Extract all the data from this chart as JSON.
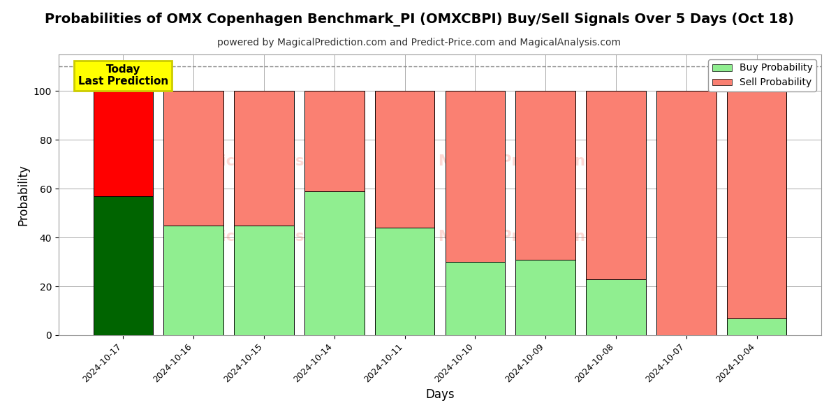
{
  "title": "Probabilities of OMX Copenhagen Benchmark_PI (OMXCBPI) Buy/Sell Signals Over 5 Days (Oct 18)",
  "subtitle": "powered by MagicalPrediction.com and Predict-Price.com and MagicalAnalysis.com",
  "xlabel": "Days",
  "ylabel": "Probability",
  "categories": [
    "2024-10-17",
    "2024-10-16",
    "2024-10-15",
    "2024-10-14",
    "2024-10-11",
    "2024-10-10",
    "2024-10-09",
    "2024-10-08",
    "2024-10-07",
    "2024-10-04"
  ],
  "buy_values": [
    57,
    45,
    45,
    59,
    44,
    30,
    31,
    23,
    0,
    7
  ],
  "sell_values": [
    43,
    55,
    55,
    41,
    56,
    70,
    69,
    77,
    100,
    93
  ],
  "buy_colors": [
    "#006400",
    "#90EE90",
    "#90EE90",
    "#90EE90",
    "#90EE90",
    "#90EE90",
    "#90EE90",
    "#90EE90",
    "#90EE90",
    "#90EE90"
  ],
  "sell_colors": [
    "#FF0000",
    "#FA8072",
    "#FA8072",
    "#FA8072",
    "#FA8072",
    "#FA8072",
    "#FA8072",
    "#FA8072",
    "#FA8072",
    "#FA8072"
  ],
  "today_label_line1": "Today",
  "today_label_line2": "Last Prediction",
  "today_bg_color": "#FFFF00",
  "legend_buy_color": "#90EE90",
  "legend_sell_color": "#FA8072",
  "legend_buy_label": "Buy Probability",
  "legend_sell_label": "Sell Probability",
  "ylim": [
    0,
    115
  ],
  "yticks": [
    0,
    20,
    40,
    60,
    80,
    100
  ],
  "dashed_line_y": 110,
  "bar_width": 0.85,
  "bar_edgecolor": "#000000",
  "background_color": "#ffffff",
  "grid_color": "#aaaaaa",
  "title_fontsize": 14,
  "subtitle_fontsize": 10,
  "watermark_color": "#FA8072",
  "watermark_alpha": 0.3
}
